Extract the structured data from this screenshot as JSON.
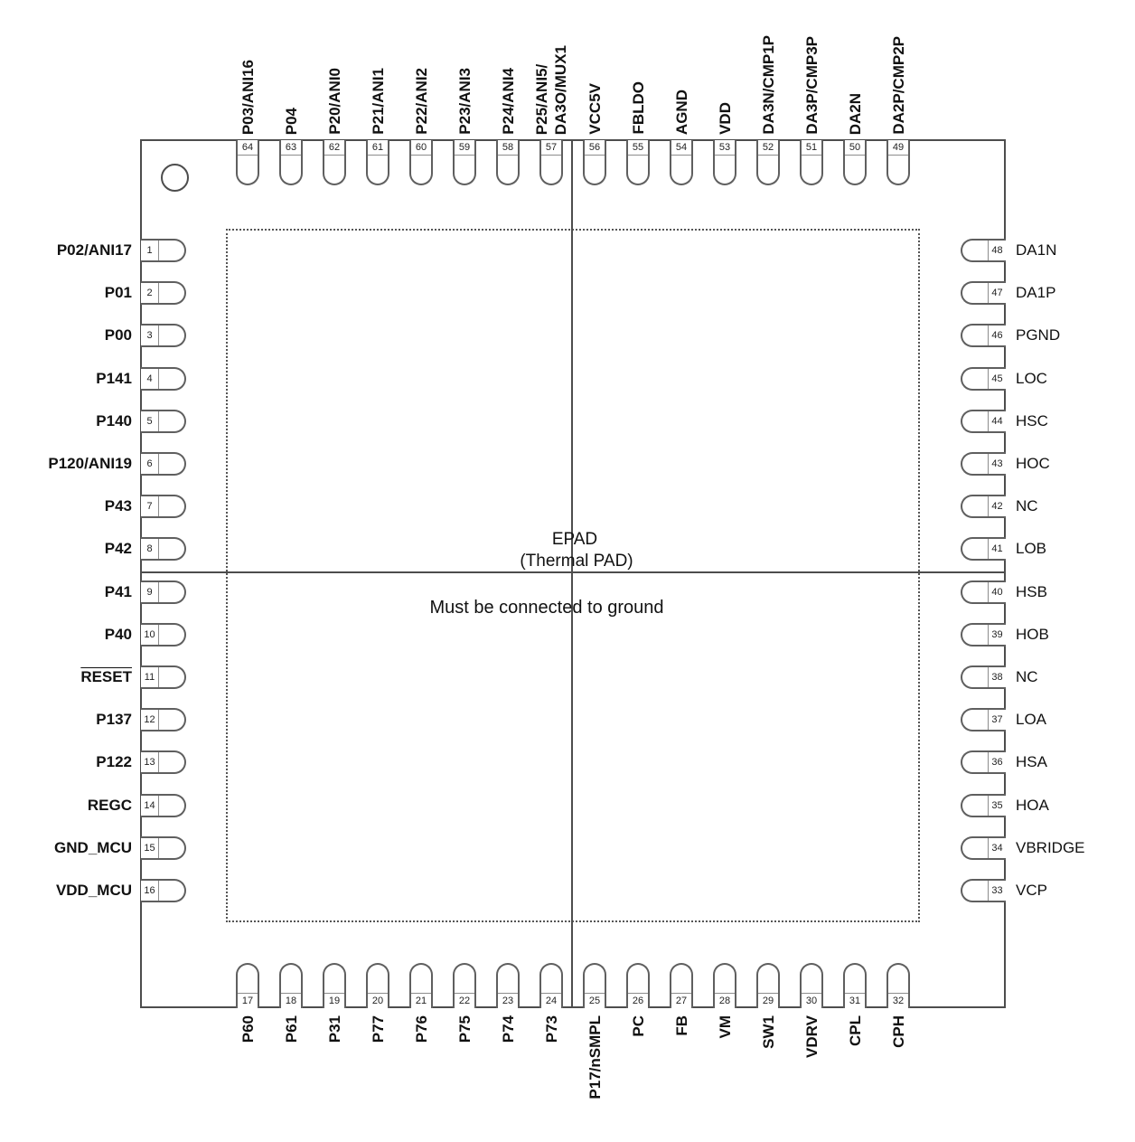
{
  "center": {
    "epad_title": "EPAD",
    "epad_subtitle": "(Thermal PAD)",
    "epad_note": "Must be connected to ground"
  },
  "pins": {
    "top": [
      {
        "num": "64",
        "label": "P03/ANI16"
      },
      {
        "num": "63",
        "label": "P04"
      },
      {
        "num": "62",
        "label": "P20/ANI0"
      },
      {
        "num": "61",
        "label": "P21/ANI1"
      },
      {
        "num": "60",
        "label": "P22/ANI2"
      },
      {
        "num": "59",
        "label": "P23/ANI3"
      },
      {
        "num": "58",
        "label": "P24/ANI4"
      },
      {
        "num": "57",
        "label": "P25/ANI5/",
        "label2": "DA3O/MUX1"
      },
      {
        "num": "56",
        "label": "VCC5V"
      },
      {
        "num": "55",
        "label": "FBLDO"
      },
      {
        "num": "54",
        "label": "AGND"
      },
      {
        "num": "53",
        "label": "VDD"
      },
      {
        "num": "52",
        "label": "DA3N/CMP1P"
      },
      {
        "num": "51",
        "label": "DA3P/CMP3P"
      },
      {
        "num": "50",
        "label": "DA2N"
      },
      {
        "num": "49",
        "label": "DA2P/CMP2P"
      }
    ],
    "left": [
      {
        "num": "1",
        "label": "P02/ANI17"
      },
      {
        "num": "2",
        "label": "P01"
      },
      {
        "num": "3",
        "label": "P00"
      },
      {
        "num": "4",
        "label": "P141"
      },
      {
        "num": "5",
        "label": "P140"
      },
      {
        "num": "6",
        "label": "P120/ANI19"
      },
      {
        "num": "7",
        "label": "P43"
      },
      {
        "num": "8",
        "label": "P42"
      },
      {
        "num": "9",
        "label": "P41"
      },
      {
        "num": "10",
        "label": "P40"
      },
      {
        "num": "11",
        "label": "RESET",
        "overline": true
      },
      {
        "num": "12",
        "label": "P137"
      },
      {
        "num": "13",
        "label": "P122"
      },
      {
        "num": "14",
        "label": "REGC"
      },
      {
        "num": "15",
        "label": "GND_MCU"
      },
      {
        "num": "16",
        "label": "VDD_MCU"
      }
    ],
    "bottom": [
      {
        "num": "17",
        "label": "P60"
      },
      {
        "num": "18",
        "label": "P61"
      },
      {
        "num": "19",
        "label": "P31"
      },
      {
        "num": "20",
        "label": "P77"
      },
      {
        "num": "21",
        "label": "P76"
      },
      {
        "num": "22",
        "label": "P75"
      },
      {
        "num": "23",
        "label": "P74"
      },
      {
        "num": "24",
        "label": "P73"
      },
      {
        "num": "25",
        "label": "P17/nSMPL"
      },
      {
        "num": "26",
        "label": "PC"
      },
      {
        "num": "27",
        "label": "FB"
      },
      {
        "num": "28",
        "label": "VM"
      },
      {
        "num": "29",
        "label": "SW1"
      },
      {
        "num": "30",
        "label": "VDRV"
      },
      {
        "num": "31",
        "label": "CPL"
      },
      {
        "num": "32",
        "label": "CPH"
      }
    ],
    "right": [
      {
        "num": "48",
        "label": "DA1N"
      },
      {
        "num": "47",
        "label": "DA1P"
      },
      {
        "num": "46",
        "label": "PGND"
      },
      {
        "num": "45",
        "label": "LOC"
      },
      {
        "num": "44",
        "label": "HSC"
      },
      {
        "num": "43",
        "label": "HOC"
      },
      {
        "num": "42",
        "label": "NC"
      },
      {
        "num": "41",
        "label": "LOB"
      },
      {
        "num": "40",
        "label": "HSB"
      },
      {
        "num": "39",
        "label": "HOB"
      },
      {
        "num": "38",
        "label": "NC"
      },
      {
        "num": "37",
        "label": "LOA"
      },
      {
        "num": "36",
        "label": "HSA"
      },
      {
        "num": "35",
        "label": "HOA"
      },
      {
        "num": "34",
        "label": "VBRIDGE"
      },
      {
        "num": "33",
        "label": "VCP"
      }
    ]
  },
  "colors": {
    "line": "#4d4d4d",
    "pad_outline": "#5f5f5f",
    "text": "#111111",
    "background": "#ffffff"
  }
}
